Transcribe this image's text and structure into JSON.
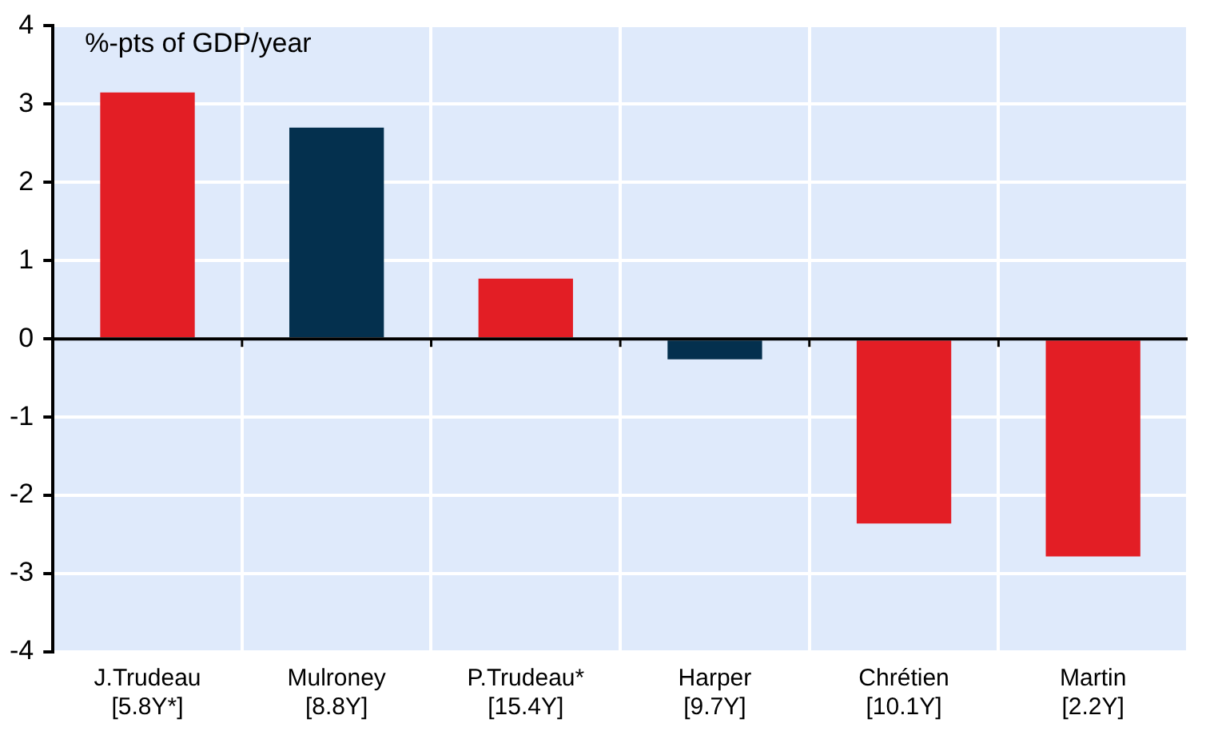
{
  "chart_data": {
    "type": "bar",
    "ylabel": "%-pts of GDP/year",
    "categories": [
      "J.Trudeau\n[5.8Y*]",
      "Mulroney\n[8.8Y]",
      "P.Trudeau*\n[15.4Y]",
      "Harper\n[9.7Y]",
      "Chrétien\n[10.1Y]",
      "Martin\n[2.2Y]"
    ],
    "values": [
      3.15,
      2.7,
      0.77,
      -0.26,
      -2.36,
      -2.78
    ],
    "colors": [
      "#e31e25",
      "#04304e",
      "#e31e25",
      "#04304e",
      "#e31e25",
      "#e31e25"
    ],
    "ylim": [
      -4,
      4
    ],
    "yticks": [
      -4,
      -3,
      -2,
      -1,
      0,
      1,
      2,
      3,
      4
    ],
    "grid": true,
    "legend": false
  }
}
